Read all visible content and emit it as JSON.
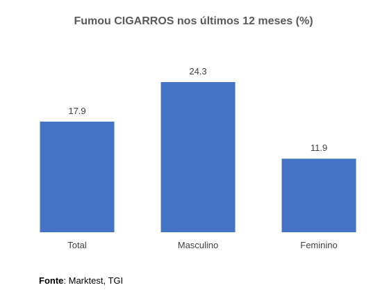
{
  "chart_data": {
    "type": "bar",
    "title": "Fumou CIGARROS nos últimos 12 meses (%)",
    "categories": [
      "Total",
      "Masculino",
      "Feminino"
    ],
    "values": [
      17.9,
      24.3,
      11.9
    ],
    "data_labels": [
      "17.9",
      "24.3",
      "11.9"
    ],
    "xlabel": "",
    "ylabel": "",
    "ylim": [
      0,
      30
    ],
    "grid": false,
    "legend": "none",
    "bar_color": "#4472C4"
  },
  "source": {
    "label": "Fonte",
    "text": ": Marktest, TGI"
  }
}
